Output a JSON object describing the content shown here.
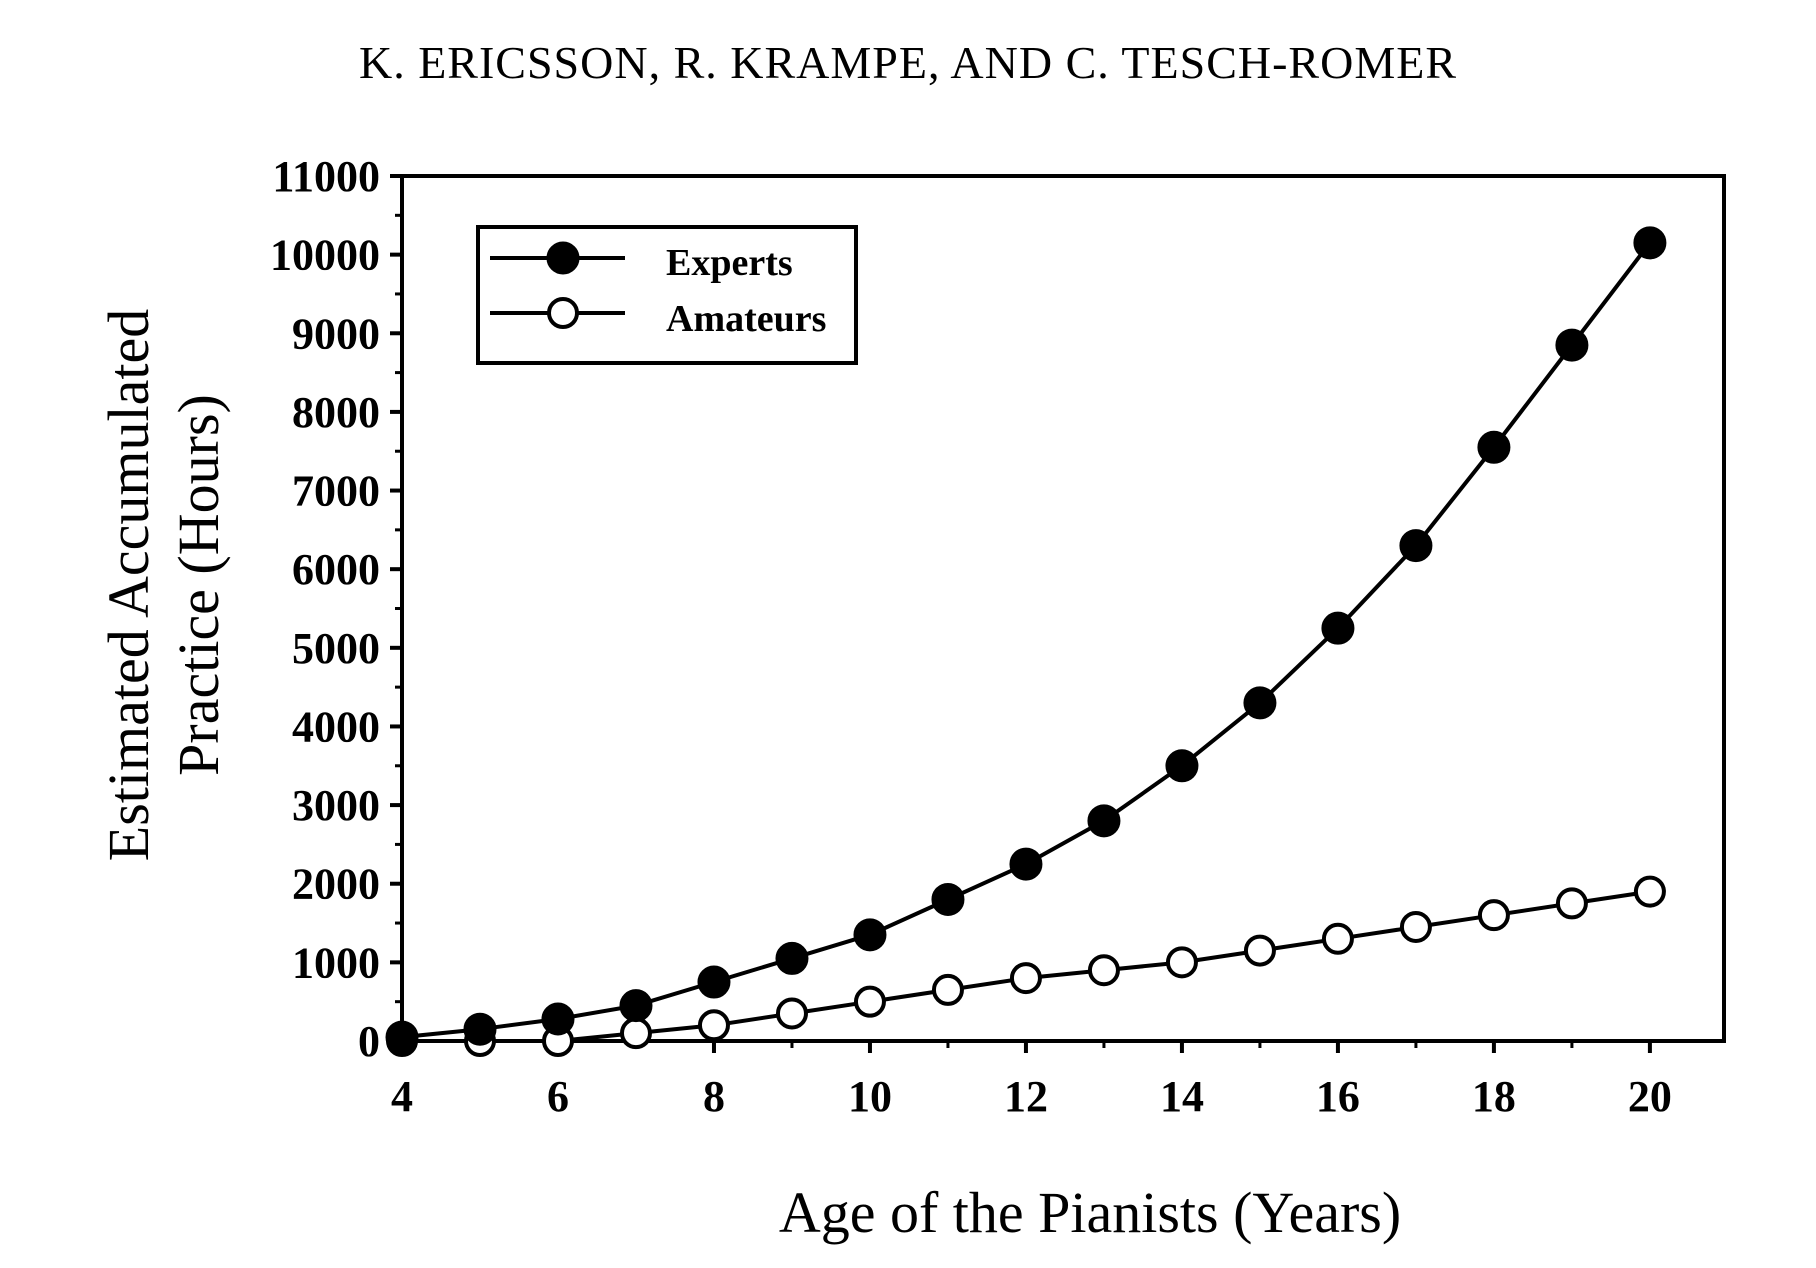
{
  "header": {
    "authors": "K. ERICSSON, R. KRAMPE, AND C. TESCH-ROMER"
  },
  "chart_data": {
    "type": "line",
    "title": "",
    "xlabel": "Age of the Pianists (Years)",
    "ylabel_lines": [
      "Estimated Accumulated",
      "Practice (Hours)"
    ],
    "x": [
      4,
      5,
      6,
      7,
      8,
      9,
      10,
      11,
      12,
      13,
      14,
      15,
      16,
      17,
      18,
      19,
      20
    ],
    "xlim": [
      4,
      20.95
    ],
    "ylim": [
      0,
      11000
    ],
    "x_ticks": [
      4,
      6,
      8,
      10,
      12,
      14,
      16,
      18,
      20
    ],
    "y_ticks": [
      0,
      1000,
      2000,
      3000,
      4000,
      5000,
      6000,
      7000,
      8000,
      9000,
      10000,
      11000
    ],
    "grid": false,
    "legend_position": "top-left",
    "series": [
      {
        "name": "Experts",
        "marker": "filled-circle",
        "color": "#000000",
        "values": [
          50,
          150,
          280,
          450,
          750,
          1050,
          1350,
          1800,
          2250,
          2800,
          3500,
          4300,
          5250,
          6300,
          7550,
          8850,
          10150
        ]
      },
      {
        "name": "Amateurs",
        "marker": "open-circle",
        "color": "#000000",
        "values": [
          0,
          0,
          0,
          100,
          200,
          350,
          500,
          650,
          800,
          900,
          1000,
          1150,
          1300,
          1450,
          1600,
          1750,
          1900
        ]
      }
    ]
  }
}
